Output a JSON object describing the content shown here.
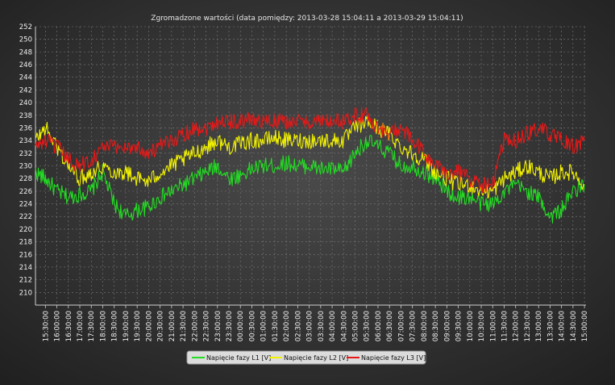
{
  "chart_data": {
    "type": "line",
    "title": "Zgromadzone wartości (data pomiędzy: 2013-03-28 15:04:11 a 2013-03-29 15:04:11)",
    "xlabel": "",
    "ylabel": "",
    "ylim": [
      208,
      252
    ],
    "y_ticks": [
      210,
      212,
      214,
      216,
      218,
      220,
      222,
      224,
      226,
      228,
      230,
      232,
      234,
      236,
      238,
      240,
      242,
      244,
      246,
      248,
      250,
      252
    ],
    "x_ticks": [
      "15:30:00",
      "16:00:00",
      "16:30:00",
      "17:00:00",
      "17:30:00",
      "18:00:00",
      "18:30:00",
      "19:00:00",
      "19:30:00",
      "20:00:00",
      "20:30:00",
      "21:00:00",
      "21:30:00",
      "22:00:00",
      "22:30:00",
      "23:00:00",
      "23:30:00",
      "00:00:00",
      "00:30:00",
      "01:00:00",
      "01:30:00",
      "02:00:00",
      "02:30:00",
      "03:00:00",
      "03:30:00",
      "04:00:00",
      "04:30:00",
      "05:00:00",
      "05:30:00",
      "06:00:00",
      "06:30:00",
      "07:00:00",
      "07:30:00",
      "08:00:00",
      "08:30:00",
      "09:00:00",
      "09:30:00",
      "10:00:00",
      "10:30:00",
      "11:00:00",
      "11:30:00",
      "12:00:00",
      "12:30:00",
      "13:00:00",
      "13:30:00",
      "14:00:00",
      "14:30:00",
      "15:00:00"
    ],
    "grid": true,
    "legend_position": "bottom-center",
    "series": [
      {
        "name": "Napięcie fazy L1 [V]",
        "color": "#22dd22",
        "x": [
          "15:04",
          "15:30",
          "16:00",
          "16:30",
          "17:00",
          "17:30",
          "18:00",
          "18:30",
          "19:00",
          "19:30",
          "20:00",
          "20:30",
          "21:00",
          "21:30",
          "22:00",
          "22:30",
          "23:00",
          "23:30",
          "00:00",
          "00:30",
          "01:00",
          "01:30",
          "02:00",
          "02:30",
          "03:00",
          "03:30",
          "04:00",
          "04:30",
          "05:00",
          "05:30",
          "06:00",
          "06:30",
          "07:00",
          "07:30",
          "08:00",
          "08:30",
          "09:00",
          "09:30",
          "10:00",
          "10:30",
          "11:00",
          "11:30",
          "12:00",
          "12:30",
          "13:00",
          "13:30",
          "14:00",
          "14:30",
          "15:00"
        ],
        "values": [
          229,
          228,
          226,
          225,
          225.5,
          226,
          229,
          224,
          222,
          223,
          223.5,
          225,
          226,
          227,
          228,
          229,
          230,
          228,
          228.5,
          229.5,
          230,
          230,
          230.5,
          230,
          230,
          229.5,
          229.5,
          229,
          232,
          234,
          233,
          232,
          230,
          230,
          229,
          228,
          226,
          225,
          225,
          224,
          224,
          226,
          227,
          226,
          225,
          222,
          223,
          226,
          227
        ]
      },
      {
        "name": "Napięcie fazy L2 [V]",
        "color": "#f2f200",
        "x": [
          "15:04",
          "15:30",
          "16:00",
          "16:30",
          "17:00",
          "17:30",
          "18:00",
          "18:30",
          "19:00",
          "19:30",
          "20:00",
          "20:30",
          "21:00",
          "21:30",
          "22:00",
          "22:30",
          "23:00",
          "23:30",
          "00:00",
          "00:30",
          "01:00",
          "01:30",
          "02:00",
          "02:30",
          "03:00",
          "03:30",
          "04:00",
          "04:30",
          "05:00",
          "05:30",
          "06:00",
          "06:30",
          "07:00",
          "07:30",
          "08:00",
          "08:30",
          "09:00",
          "09:30",
          "10:00",
          "10:30",
          "11:00",
          "11:30",
          "12:00",
          "12:30",
          "13:00",
          "13:30",
          "14:00",
          "14:30",
          "15:00"
        ],
        "values": [
          234,
          236,
          233,
          230,
          228,
          229,
          230,
          229,
          229,
          228,
          227.5,
          229,
          230,
          231,
          232,
          233,
          234,
          233,
          233.5,
          234,
          234,
          234.5,
          234,
          234,
          234,
          234,
          234,
          234,
          236,
          237,
          236,
          235,
          233,
          232,
          231,
          229,
          228,
          227,
          227,
          226,
          226,
          228,
          229,
          230,
          229,
          228,
          229,
          229,
          227
        ]
      },
      {
        "name": "Napięcie fazy L3 [V]",
        "color": "#e81818",
        "x": [
          "15:04",
          "15:30",
          "16:00",
          "16:30",
          "17:00",
          "17:30",
          "18:00",
          "18:30",
          "19:00",
          "19:30",
          "20:00",
          "20:30",
          "21:00",
          "21:30",
          "22:00",
          "22:30",
          "23:00",
          "23:30",
          "00:00",
          "00:30",
          "01:00",
          "01:30",
          "02:00",
          "02:30",
          "03:00",
          "03:30",
          "04:00",
          "04:30",
          "05:00",
          "05:30",
          "06:00",
          "06:30",
          "07:00",
          "07:30",
          "08:00",
          "08:30",
          "09:00",
          "09:30",
          "10:00",
          "10:30",
          "11:00",
          "11:30",
          "12:00",
          "12:30",
          "13:00",
          "13:30",
          "14:00",
          "14:30",
          "15:00"
        ],
        "values": [
          233,
          234,
          233,
          231,
          230,
          231,
          233,
          233,
          233,
          233,
          232,
          233,
          234,
          235,
          236,
          236,
          237,
          237,
          237,
          237.5,
          237,
          237,
          237,
          237,
          237,
          237,
          237,
          237,
          238,
          238,
          236,
          235,
          236,
          234,
          232,
          230,
          229,
          229,
          228,
          227,
          227,
          234,
          234,
          235,
          236,
          235,
          234,
          233,
          234
        ]
      }
    ]
  }
}
